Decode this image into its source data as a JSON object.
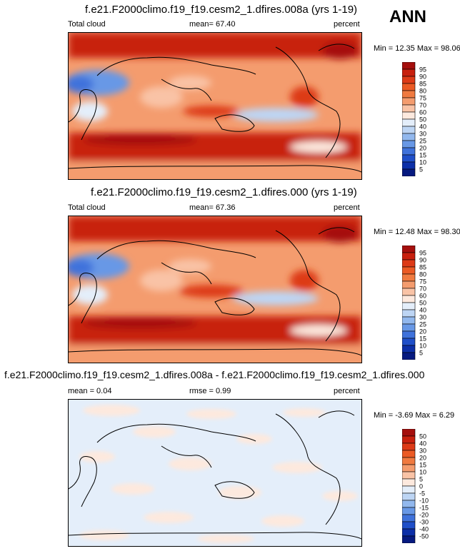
{
  "season": "ANN",
  "panels": [
    {
      "title": "f.e21.F2000climo.f19_f19.cesm2_1.dfires.008a (yrs 1-19)",
      "left_label": "Total cloud",
      "center_label": "mean=  67.40",
      "right_label": "percent",
      "minmax": "Min =  12.35 Max =  98.06",
      "colorbar_levels": [
        "95",
        "90",
        "85",
        "80",
        "75",
        "70",
        "60",
        "50",
        "40",
        "30",
        "25",
        "20",
        "15",
        "10",
        "5"
      ],
      "colorbar_colors": [
        "#a50f0d",
        "#c8200e",
        "#dd3a17",
        "#eb5a24",
        "#f07a40",
        "#f49c6e",
        "#f9c3a6",
        "#fde9de",
        "#e4eefa",
        "#bdd5f4",
        "#92b8ee",
        "#6898e6",
        "#3f72db",
        "#1f4fc9",
        "#0c2fa8",
        "#061a80"
      ]
    },
    {
      "title": "f.e21.F2000climo.f19_f19.cesm2_1.dfires.000 (yrs 1-19)",
      "left_label": "Total cloud",
      "center_label": "mean=  67.36",
      "right_label": "percent",
      "minmax": "Min =  12.48 Max =  98.30",
      "colorbar_levels": [
        "95",
        "90",
        "85",
        "80",
        "75",
        "70",
        "60",
        "50",
        "40",
        "30",
        "25",
        "20",
        "15",
        "10",
        "5"
      ],
      "colorbar_colors": [
        "#a50f0d",
        "#c8200e",
        "#dd3a17",
        "#eb5a24",
        "#f07a40",
        "#f49c6e",
        "#f9c3a6",
        "#fde9de",
        "#e4eefa",
        "#bdd5f4",
        "#92b8ee",
        "#6898e6",
        "#3f72db",
        "#1f4fc9",
        "#0c2fa8",
        "#061a80"
      ]
    },
    {
      "title": "f.e21.F2000climo.f19_f19.cesm2_1.dfires.008a - f.e21.F2000climo.f19_f19.cesm2_1.dfires.000",
      "left_label": "mean =   0.04",
      "center_label": "rmse =   0.99",
      "right_label": "percent",
      "minmax": "Min =  -3.69 Max =   6.29",
      "colorbar_levels": [
        "50",
        "40",
        "30",
        "20",
        "15",
        "10",
        "5",
        "0",
        "-5",
        "-10",
        "-15",
        "-20",
        "-30",
        "-40",
        "-50"
      ],
      "colorbar_colors": [
        "#a50f0d",
        "#c8200e",
        "#dd3a17",
        "#eb5a24",
        "#f07a40",
        "#f49c6e",
        "#f9c3a6",
        "#fde9de",
        "#e4eefa",
        "#bdd5f4",
        "#92b8ee",
        "#6898e6",
        "#3f72db",
        "#1f4fc9",
        "#0c2fa8",
        "#061a80"
      ]
    }
  ]
}
